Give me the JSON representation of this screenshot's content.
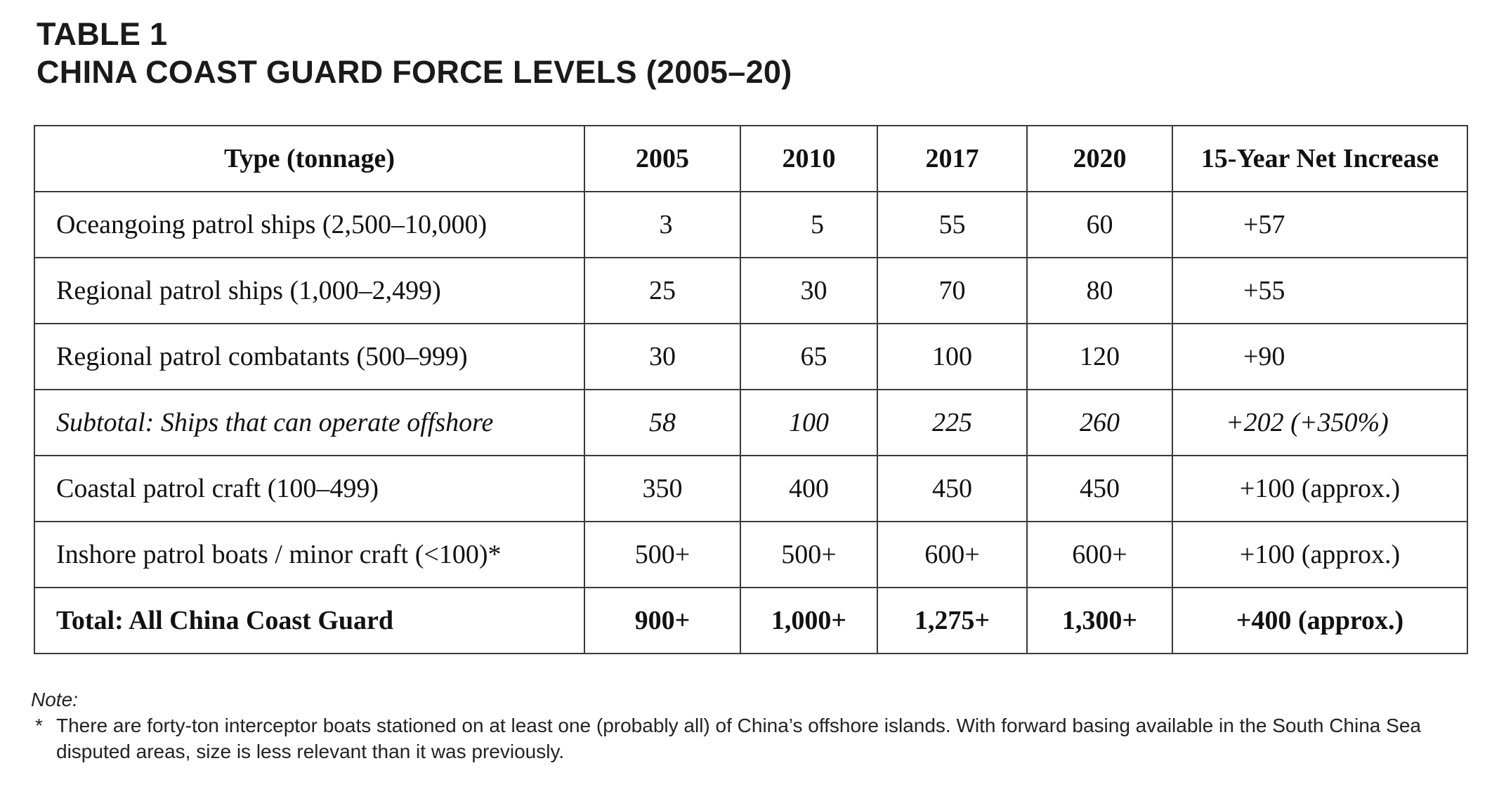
{
  "heading": {
    "table_number": "TABLE 1",
    "title": "CHINA COAST GUARD FORCE LEVELS (2005–20)"
  },
  "table": {
    "columns": [
      "Type (tonnage)",
      "2005",
      "2010",
      "2017",
      "2020",
      "15-Year Net Increase"
    ],
    "rows": [
      {
        "type": "Oceangoing patrol ships (2,500–10,000)",
        "y2005": "3",
        "y2010": "5",
        "y2017": "55",
        "y2020": "60",
        "increase": "+57"
      },
      {
        "type": "Regional patrol ships (1,000–2,499)",
        "y2005": "25",
        "y2010": "30",
        "y2017": "70",
        "y2020": "80",
        "increase": "+55"
      },
      {
        "type": "Regional patrol combatants (500–999)",
        "y2005": "30",
        "y2010": "65",
        "y2017": "100",
        "y2020": "120",
        "increase": "+90"
      },
      {
        "type": "Subtotal: Ships that can operate offshore",
        "y2005": "58",
        "y2010": "100",
        "y2017": "225",
        "y2020": "260",
        "increase": "+202 (+350%)"
      },
      {
        "type": "Coastal patrol craft (100–499)",
        "y2005": "350",
        "y2010": "400",
        "y2017": "450",
        "y2020": "450",
        "increase": "+100 (approx.)"
      },
      {
        "type": "Inshore patrol boats / minor craft (<100)*",
        "y2005": "500+",
        "y2010": "500+",
        "y2017": "600+",
        "y2020": "600+",
        "increase": "+100 (approx.)"
      },
      {
        "type": "Total: All China Coast Guard",
        "y2005": "900+",
        "y2010": "1,000+",
        "y2017": "1,275+",
        "y2020": "1,300+",
        "increase": "+400 (approx.)"
      }
    ]
  },
  "note": {
    "label": "Note:",
    "marker": "*",
    "text": "There are forty-ton interceptor boats stationed on at least one (probably all) of China’s offshore islands. With forward basing available in the South China Sea disputed areas, size is less relevant than it was previously."
  }
}
